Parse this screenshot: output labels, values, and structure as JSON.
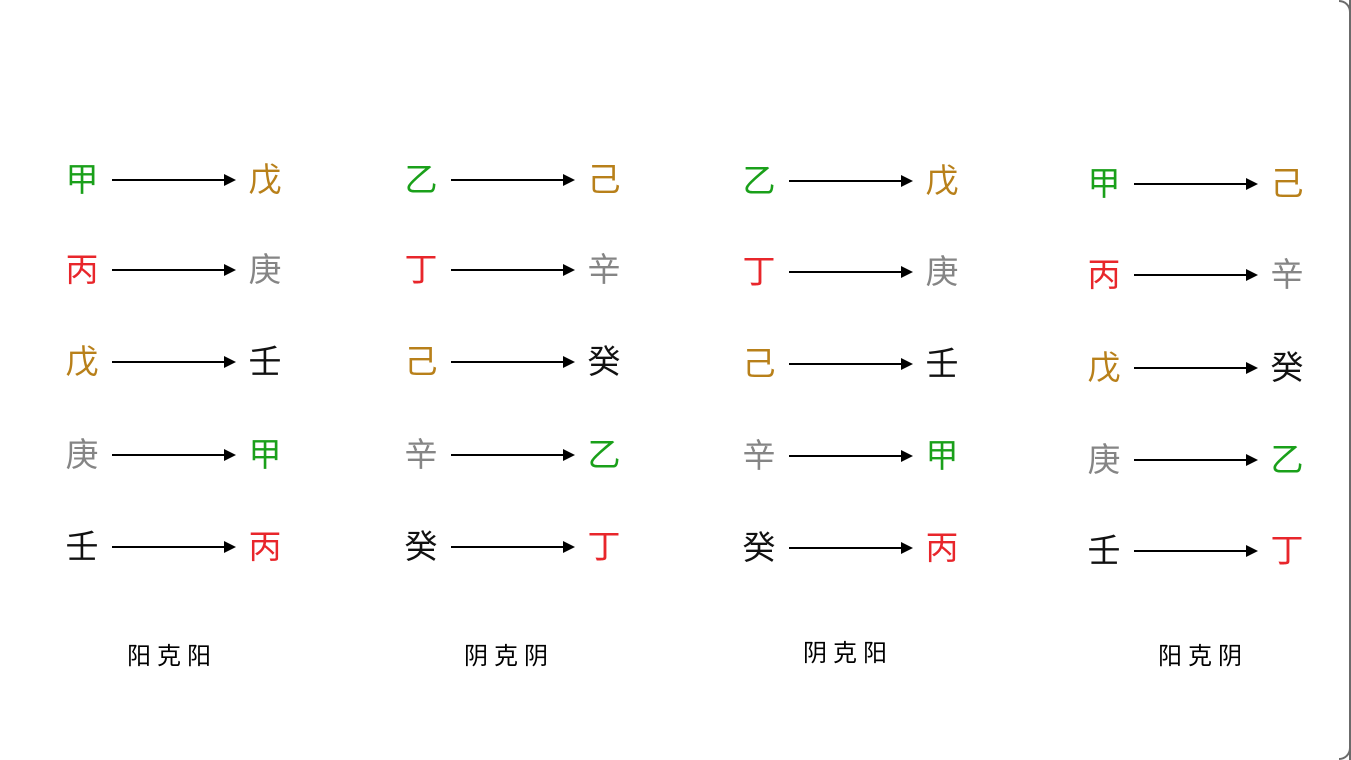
{
  "colors": {
    "wood": "#1aa01a",
    "fire": "#e8262b",
    "earth": "#b8801a",
    "metal": "#858585",
    "water": "#111111"
  },
  "groups": [
    {
      "caption": "阳克阳",
      "rows": [
        {
          "from": "甲",
          "from_color": "#1aa01a",
          "to": "戊",
          "to_color": "#b8801a"
        },
        {
          "from": "丙",
          "from_color": "#e8262b",
          "to": "庚",
          "to_color": "#858585"
        },
        {
          "from": "戊",
          "from_color": "#b8801a",
          "to": "壬",
          "to_color": "#111111"
        },
        {
          "from": "庚",
          "from_color": "#858585",
          "to": "甲",
          "to_color": "#1aa01a"
        },
        {
          "from": "壬",
          "from_color": "#111111",
          "to": "丙",
          "to_color": "#e8262b"
        }
      ]
    },
    {
      "caption": "阴克阴",
      "rows": [
        {
          "from": "乙",
          "from_color": "#1aa01a",
          "to": "己",
          "to_color": "#b8801a"
        },
        {
          "from": "丁",
          "from_color": "#e8262b",
          "to": "辛",
          "to_color": "#858585"
        },
        {
          "from": "己",
          "from_color": "#b8801a",
          "to": "癸",
          "to_color": "#111111"
        },
        {
          "from": "辛",
          "from_color": "#858585",
          "to": "乙",
          "to_color": "#1aa01a"
        },
        {
          "from": "癸",
          "from_color": "#111111",
          "to": "丁",
          "to_color": "#e8262b"
        }
      ]
    },
    {
      "caption": "阴克阳",
      "rows": [
        {
          "from": "乙",
          "from_color": "#1aa01a",
          "to": "戊",
          "to_color": "#b8801a"
        },
        {
          "from": "丁",
          "from_color": "#e8262b",
          "to": "庚",
          "to_color": "#858585"
        },
        {
          "from": "己",
          "from_color": "#b8801a",
          "to": "壬",
          "to_color": "#111111"
        },
        {
          "from": "辛",
          "from_color": "#858585",
          "to": "甲",
          "to_color": "#1aa01a"
        },
        {
          "from": "癸",
          "from_color": "#111111",
          "to": "丙",
          "to_color": "#e8262b"
        }
      ]
    },
    {
      "caption": "阳克阴",
      "rows": [
        {
          "from": "甲",
          "from_color": "#1aa01a",
          "to": "己",
          "to_color": "#b8801a"
        },
        {
          "from": "丙",
          "from_color": "#e8262b",
          "to": "辛",
          "to_color": "#858585"
        },
        {
          "from": "戊",
          "from_color": "#b8801a",
          "to": "癸",
          "to_color": "#111111"
        },
        {
          "from": "庚",
          "from_color": "#858585",
          "to": "乙",
          "to_color": "#1aa01a"
        },
        {
          "from": "壬",
          "from_color": "#111111",
          "to": "丁",
          "to_color": "#e8262b"
        }
      ]
    }
  ]
}
